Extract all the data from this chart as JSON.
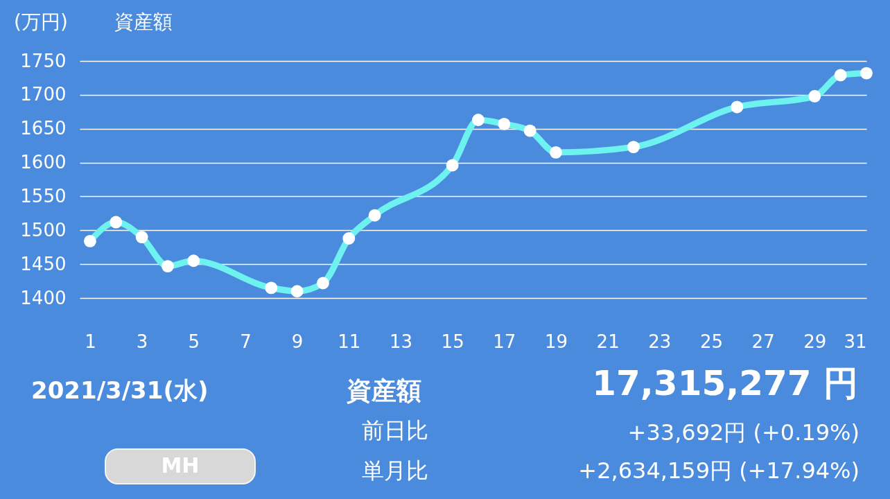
{
  "chart_data": {
    "type": "line",
    "title": "資産額",
    "ylabel": "(万円)",
    "x": [
      1,
      2,
      3,
      4,
      5,
      8,
      9,
      10,
      11,
      12,
      15,
      16,
      17,
      18,
      19,
      22,
      26,
      29,
      30,
      31
    ],
    "series": [
      {
        "color": "#6ef2f0",
        "values": [
          1484,
          1512,
          1490,
          1447,
          1455,
          1415,
          1410,
          1422,
          1488,
          1522,
          1596,
          1663,
          1657,
          1647,
          1615,
          1623,
          1682,
          1698,
          1729,
          1732
        ]
      }
    ],
    "xlim": [
      0.6,
      31
    ],
    "xticks": [
      1,
      3,
      5,
      7,
      9,
      11,
      13,
      15,
      17,
      19,
      21,
      23,
      25,
      27,
      29,
      31
    ],
    "ylim": [
      1400,
      1750
    ],
    "yticks": [
      1400,
      1450,
      1500,
      1550,
      1600,
      1650,
      1700,
      1750
    ],
    "grid": "y",
    "marker": "circle",
    "annotations": [
      "2021/3/31(水)",
      "資産額",
      "17,315,277 円",
      "前日比",
      "+33,692円 (+0.19%)",
      "単月比",
      "+2,634,159円 (+17.94%)",
      "MH"
    ]
  }
}
